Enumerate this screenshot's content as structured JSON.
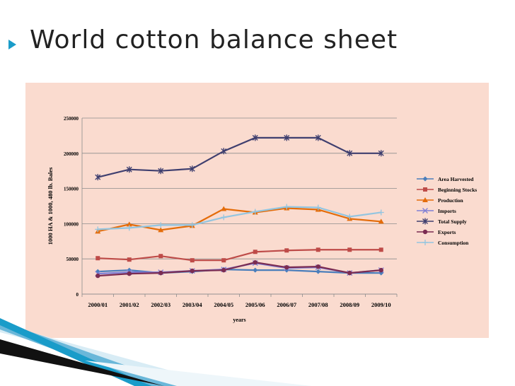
{
  "slide": {
    "title": "World cotton balance sheet"
  },
  "colors": {
    "panel": "#fadbcf",
    "bullet": "#1a9cc9",
    "grid": "#8c8c8c"
  },
  "chart_data": {
    "type": "line",
    "title": "",
    "xlabel": "years",
    "ylabel": "1000 HA & 1000, 480 lb. Bales",
    "ylim": [
      0,
      250000
    ],
    "yticks": [
      "0",
      "50000",
      "100000",
      "150000",
      "200000",
      "250000"
    ],
    "grid": true,
    "legend_position": "right",
    "categories": [
      "2000/01",
      "2001/02",
      "2002/03",
      "2003/04",
      "2004/05",
      "2005/06",
      "2006/07",
      "2007/08",
      "2008/09",
      "2009/10"
    ],
    "series": [
      {
        "name": "Area Harvested",
        "color": "#4a7ebb",
        "marker": "diamond",
        "values": [
          32000,
          34000,
          30000,
          32000,
          35000,
          34000,
          34000,
          32000,
          30000,
          30000
        ]
      },
      {
        "name": "Beginning Stocks",
        "color": "#be4b48",
        "marker": "square",
        "values": [
          51000,
          49000,
          54000,
          48000,
          48000,
          60000,
          62000,
          63000,
          63000,
          63000
        ]
      },
      {
        "name": "Production",
        "color": "#e46c0a",
        "marker": "triangle",
        "values": [
          89000,
          99000,
          91000,
          97000,
          121000,
          116000,
          122000,
          120000,
          107000,
          103000
        ]
      },
      {
        "name": "Imports",
        "color": "#7f7fd5",
        "marker": "x",
        "values": [
          29000,
          31000,
          31000,
          33000,
          35000,
          44000,
          37000,
          38000,
          30000,
          34000
        ]
      },
      {
        "name": "Total Supply",
        "color": "#3f3f6f",
        "marker": "star",
        "values": [
          166000,
          177000,
          175000,
          178000,
          203000,
          222000,
          222000,
          222000,
          200000,
          200000
        ]
      },
      {
        "name": "Exports",
        "color": "#7b2c52",
        "marker": "circle",
        "values": [
          26000,
          29000,
          30000,
          33000,
          34000,
          45000,
          38000,
          39000,
          30000,
          34000
        ]
      },
      {
        "name": "Consumption",
        "color": "#93c5e0",
        "marker": "plus",
        "values": [
          92000,
          94000,
          98000,
          98000,
          109000,
          117000,
          124000,
          123000,
          110000,
          116000
        ]
      }
    ]
  }
}
